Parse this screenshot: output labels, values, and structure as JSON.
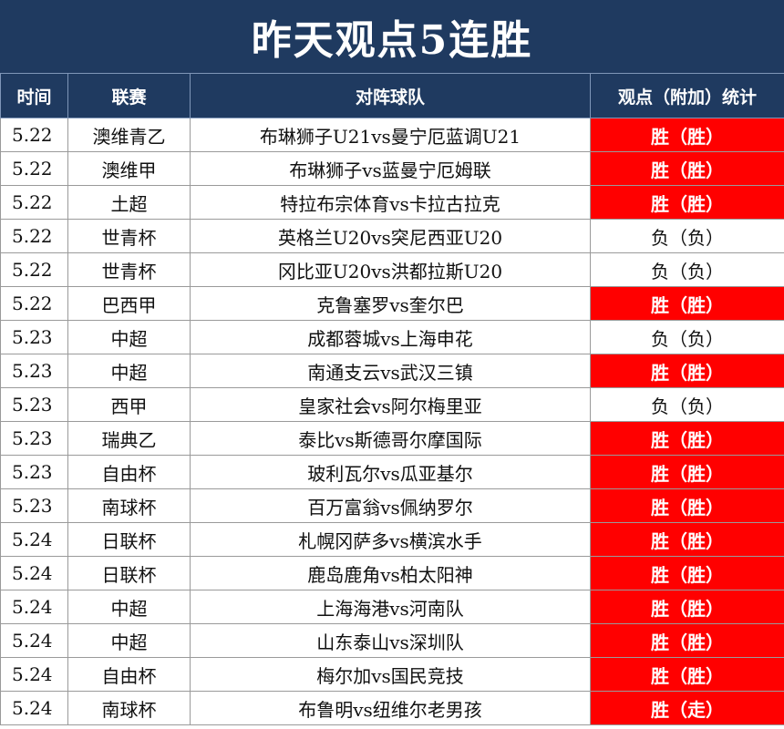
{
  "title": "昨天观点5连胜",
  "headers": {
    "time": "时间",
    "league": "联赛",
    "match": "对阵球队",
    "stats": "观点（附加）统计"
  },
  "colors": {
    "header_bg": "#1f3a60",
    "win_bg": "#ff0000"
  },
  "rows": [
    {
      "date": "5.22",
      "league": "澳维青乙",
      "match": "布琳狮子U21vs曼宁厄蓝调U21",
      "result": "胜（胜）",
      "outcome": "win"
    },
    {
      "date": "5.22",
      "league": "澳维甲",
      "match": "布琳狮子vs蓝曼宁厄姆联",
      "result": "胜（胜）",
      "outcome": "win"
    },
    {
      "date": "5.22",
      "league": "土超",
      "match": "特拉布宗体育vs卡拉古拉克",
      "result": "胜（胜）",
      "outcome": "win"
    },
    {
      "date": "5.22",
      "league": "世青杯",
      "match": "英格兰U20vs突尼西亚U20",
      "result": "负（负）",
      "outcome": "loss"
    },
    {
      "date": "5.22",
      "league": "世青杯",
      "match": "冈比亚U20vs洪都拉斯U20",
      "result": "负（负）",
      "outcome": "loss"
    },
    {
      "date": "5.22",
      "league": "巴西甲",
      "match": "克鲁塞罗vs奎尔巴",
      "result": "胜（胜）",
      "outcome": "win"
    },
    {
      "date": "5.23",
      "league": "中超",
      "match": "成都蓉城vs上海申花",
      "result": "负（负）",
      "outcome": "loss"
    },
    {
      "date": "5.23",
      "league": "中超",
      "match": "南通支云vs武汉三镇",
      "result": "胜（胜）",
      "outcome": "win"
    },
    {
      "date": "5.23",
      "league": "西甲",
      "match": "皇家社会vs阿尔梅里亚",
      "result": "负（负）",
      "outcome": "loss"
    },
    {
      "date": "5.23",
      "league": "瑞典乙",
      "match": "泰比vs斯德哥尔摩国际",
      "result": "胜（胜）",
      "outcome": "win"
    },
    {
      "date": "5.23",
      "league": "自由杯",
      "match": "玻利瓦尔vs瓜亚基尔",
      "result": "胜（胜）",
      "outcome": "win"
    },
    {
      "date": "5.23",
      "league": "南球杯",
      "match": "百万富翁vs佩纳罗尔",
      "result": "胜（胜）",
      "outcome": "win"
    },
    {
      "date": "5.24",
      "league": "日联杯",
      "match": "札幌冈萨多vs横滨水手",
      "result": "胜（胜）",
      "outcome": "win"
    },
    {
      "date": "5.24",
      "league": "日联杯",
      "match": "鹿岛鹿角vs柏太阳神",
      "result": "胜（胜）",
      "outcome": "win"
    },
    {
      "date": "5.24",
      "league": "中超",
      "match": "上海海港vs河南队",
      "result": "胜（胜）",
      "outcome": "win"
    },
    {
      "date": "5.24",
      "league": "中超",
      "match": "山东泰山vs深圳队",
      "result": "胜（胜）",
      "outcome": "win"
    },
    {
      "date": "5.24",
      "league": "自由杯",
      "match": "梅尔加vs国民竞技",
      "result": "胜（胜）",
      "outcome": "win"
    },
    {
      "date": "5.24",
      "league": "南球杯",
      "match": "布鲁明vs纽维尔老男孩",
      "result": "胜（走）",
      "outcome": "win"
    }
  ]
}
